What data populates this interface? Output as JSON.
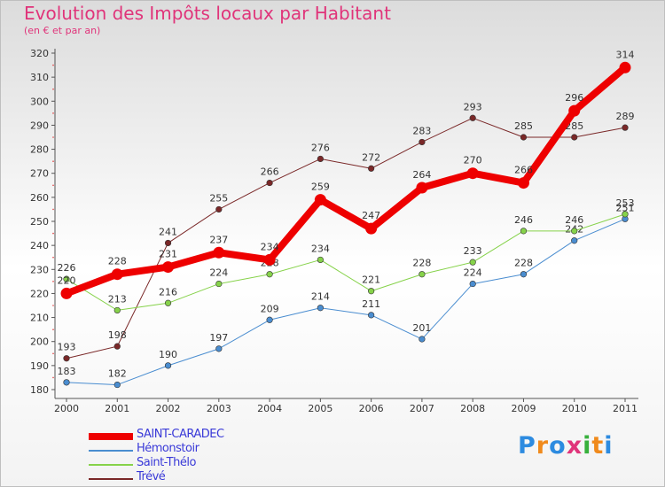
{
  "page": {
    "title": "Evolution des Impôts locaux par Habitant",
    "subtitle": "(en € et par an)"
  },
  "logo": {
    "text": "Proxiti",
    "letters": [
      {
        "ch": "P",
        "color": "#2d8be0"
      },
      {
        "ch": "r",
        "color": "#f08a1c"
      },
      {
        "ch": "o",
        "color": "#2d8be0"
      },
      {
        "ch": "x",
        "color": "#e0347a"
      },
      {
        "ch": "i",
        "color": "#38b03c"
      },
      {
        "ch": "t",
        "color": "#f08a1c"
      },
      {
        "ch": "i",
        "color": "#2d8be0"
      }
    ]
  },
  "chart_data": {
    "type": "line",
    "title": "Evolution des Impôts locaux par Habitant",
    "subtitle": "(en € et par an)",
    "xlabel": "",
    "ylabel": "",
    "ylim": [
      180,
      320
    ],
    "ytick_step": 10,
    "grid": false,
    "legend_position": "bottom-left",
    "categories": [
      "2000",
      "2001",
      "2002",
      "2003",
      "2004",
      "2005",
      "2006",
      "2007",
      "2008",
      "2009",
      "2010",
      "2011"
    ],
    "series": [
      {
        "name": "Trévé",
        "color": "#7a2828",
        "values": [
          193,
          198,
          241,
          255,
          266,
          276,
          272,
          283,
          293,
          285,
          285,
          289
        ],
        "emphasis": false
      },
      {
        "name": "Hémonstoir",
        "color": "#4a8dd0",
        "values": [
          183,
          182,
          190,
          197,
          209,
          214,
          211,
          201,
          224,
          228,
          242,
          251
        ],
        "emphasis": false
      },
      {
        "name": "Saint-Thélo",
        "color": "#86d24a",
        "values": [
          226,
          213,
          216,
          224,
          228,
          234,
          221,
          228,
          233,
          246,
          246,
          253
        ],
        "emphasis": false
      },
      {
        "name": "SAINT-CARADEC",
        "color": "#ee0000",
        "values": [
          220,
          228,
          231,
          237,
          234,
          259,
          247,
          264,
          270,
          266,
          296,
          314
        ],
        "emphasis": true
      }
    ],
    "legend_order": [
      "SAINT-CARADEC",
      "Hémonstoir",
      "Saint-Thélo",
      "Trévé"
    ]
  }
}
